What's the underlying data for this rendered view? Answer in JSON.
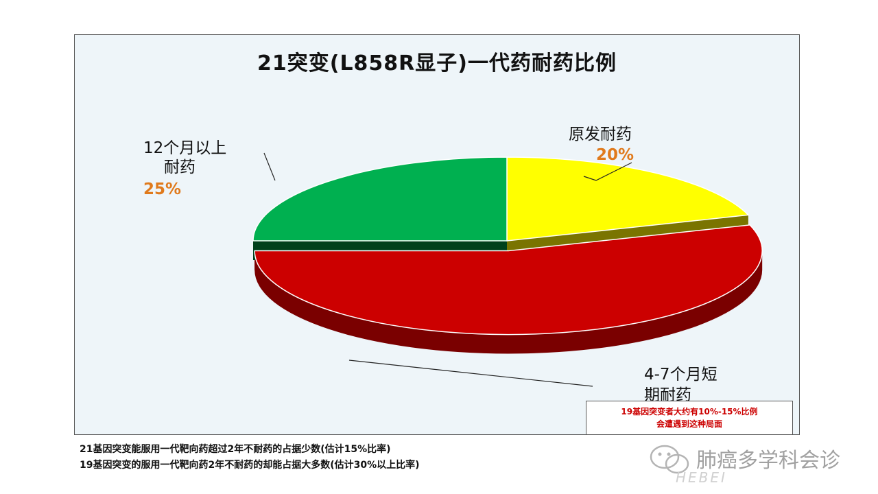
{
  "chart_data": {
    "type": "pie",
    "title": "21突变(L858R显子)一代药耐药比例",
    "slices": [
      {
        "label_lines": [
          "原发耐药"
        ],
        "value": 20,
        "value_label": "20%",
        "color": "#ffff00",
        "side_color": "#7a7400"
      },
      {
        "label_lines": [
          "4-7个月短",
          "期耐药"
        ],
        "value": 55,
        "value_label": "",
        "color": "#cc0000",
        "side_color": "#7a0000"
      },
      {
        "label_lines": [
          "12个月以上",
          "耐药"
        ],
        "value": 25,
        "value_label": "25%",
        "color": "#00b050",
        "side_color": "#00401c"
      }
    ]
  },
  "note": {
    "line1": "19基因突变者大约有10%-15%比例",
    "line2": "会遭遇到这种局面"
  },
  "footnotes": {
    "line1": "21基因突变能服用一代靶向药超过2年不耐药的占据少数(估计15%比率)",
    "line2": "19基因突变的服用一代靶向药2年不耐药的却能占据大多数(估计30%以上比率)"
  },
  "watermark": {
    "text": "肺癌多学科会诊",
    "sub": "HEBEI"
  }
}
